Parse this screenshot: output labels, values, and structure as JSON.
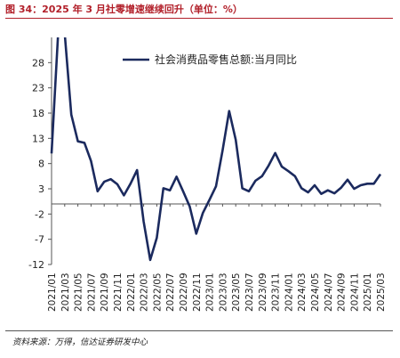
{
  "title": "图 34：2025 年 3 月社零增速继续回升（单位：%）",
  "source": "资料来源：万得，信达证券研发中心",
  "colors": {
    "title": "#b2202a",
    "line": "#1b2a5e",
    "axis": "#555555",
    "text": "#222222"
  },
  "chart_data": {
    "type": "line",
    "title": "",
    "xlabel": "",
    "ylabel": "",
    "ylim": [
      -12,
      33
    ],
    "yticks": [
      -12,
      -7,
      -2,
      3,
      8,
      13,
      18,
      23,
      28
    ],
    "xtick_labels": [
      "2021/01",
      "2021/03",
      "2021/05",
      "2021/07",
      "2021/09",
      "2021/11",
      "2022/01",
      "2022/03",
      "2022/05",
      "2022/07",
      "2022/09",
      "2022/11",
      "2023/01",
      "2023/03",
      "2023/05",
      "2023/07",
      "2023/09",
      "2023/11",
      "2024/01",
      "2024/03",
      "2024/05",
      "2024/07",
      "2024/09",
      "2024/11",
      "2025/01",
      "2025/03"
    ],
    "legend": "top-right",
    "grid": false,
    "series": [
      {
        "name": "社会消费品零售总额:当月同比",
        "x": [
          "2021/01",
          "2021/02",
          "2021/03",
          "2021/04",
          "2021/05",
          "2021/06",
          "2021/07",
          "2021/08",
          "2021/09",
          "2021/10",
          "2021/11",
          "2021/12",
          "2022/01",
          "2022/02",
          "2022/03",
          "2022/04",
          "2022/05",
          "2022/06",
          "2022/07",
          "2022/08",
          "2022/09",
          "2022/10",
          "2022/11",
          "2022/12",
          "2023/01",
          "2023/02",
          "2023/03",
          "2023/04",
          "2023/05",
          "2023/06",
          "2023/07",
          "2023/08",
          "2023/09",
          "2023/10",
          "2023/11",
          "2023/12",
          "2024/01",
          "2024/02",
          "2024/03",
          "2024/04",
          "2024/05",
          "2024/06",
          "2024/07",
          "2024/08",
          "2024/09",
          "2024/10",
          "2024/11",
          "2024/12",
          "2025/01",
          "2025/02",
          "2025/03"
        ],
        "values": [
          10.0,
          33.8,
          33.8,
          17.7,
          12.4,
          12.1,
          8.5,
          2.5,
          4.4,
          4.9,
          3.9,
          1.7,
          4.0,
          6.7,
          -3.5,
          -11.1,
          -6.7,
          3.1,
          2.7,
          5.4,
          2.5,
          -0.5,
          -5.9,
          -1.8,
          0.8,
          3.5,
          10.6,
          18.4,
          12.7,
          3.1,
          2.5,
          4.6,
          5.5,
          7.6,
          10.1,
          7.4,
          6.5,
          5.5,
          3.1,
          2.3,
          3.7,
          2.0,
          2.7,
          2.1,
          3.2,
          4.8,
          3.0,
          3.7,
          4.0,
          4.0,
          5.9
        ]
      }
    ]
  }
}
